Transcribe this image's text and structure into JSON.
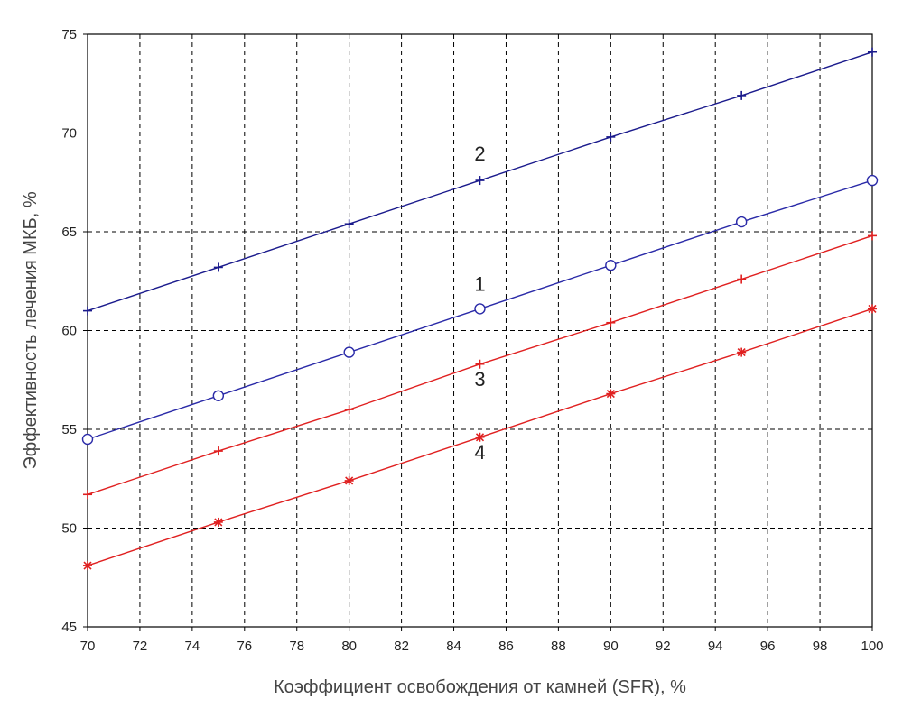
{
  "chart_data": {
    "type": "line",
    "xlabel": "Коэффициент освобождения от камней (SFR), %",
    "ylabel": "Эффективность лечения МКБ, %",
    "xlim": [
      70,
      100
    ],
    "ylim": [
      45,
      75
    ],
    "x_ticks": [
      "70",
      "72",
      "74",
      "76",
      "78",
      "80",
      "82",
      "84",
      "86",
      "88",
      "90",
      "92",
      "94",
      "96",
      "98",
      "100"
    ],
    "y_ticks": [
      "45",
      "50",
      "55",
      "60",
      "65",
      "70",
      "75"
    ],
    "grid": true,
    "series": [
      {
        "name": "1",
        "color": "#2a2aa8",
        "marker": "circle",
        "x": [
          70,
          75,
          80,
          85,
          90,
          95,
          100
        ],
        "y": [
          54.5,
          56.7,
          58.9,
          61.1,
          63.3,
          65.5,
          67.6
        ],
        "label_at": [
          85,
          62.0
        ]
      },
      {
        "name": "2",
        "color": "#1a1a8c",
        "marker": "plus",
        "x": [
          70,
          75,
          80,
          85,
          90,
          95,
          100
        ],
        "y": [
          61.0,
          63.2,
          65.4,
          67.6,
          69.8,
          71.9,
          74.1
        ],
        "label_at": [
          85,
          68.6
        ]
      },
      {
        "name": "3",
        "color": "#e02020",
        "marker": "plus",
        "x": [
          70,
          75,
          80,
          85,
          90,
          95,
          100
        ],
        "y": [
          51.7,
          53.9,
          56.0,
          58.3,
          60.4,
          62.6,
          64.8
        ],
        "label_at": [
          85,
          57.2
        ]
      },
      {
        "name": "4",
        "color": "#e02020",
        "marker": "star",
        "x": [
          70,
          75,
          80,
          85,
          90,
          95,
          100
        ],
        "y": [
          48.1,
          50.3,
          52.4,
          54.6,
          56.8,
          58.9,
          61.1
        ],
        "label_at": [
          85,
          53.5
        ]
      }
    ]
  }
}
